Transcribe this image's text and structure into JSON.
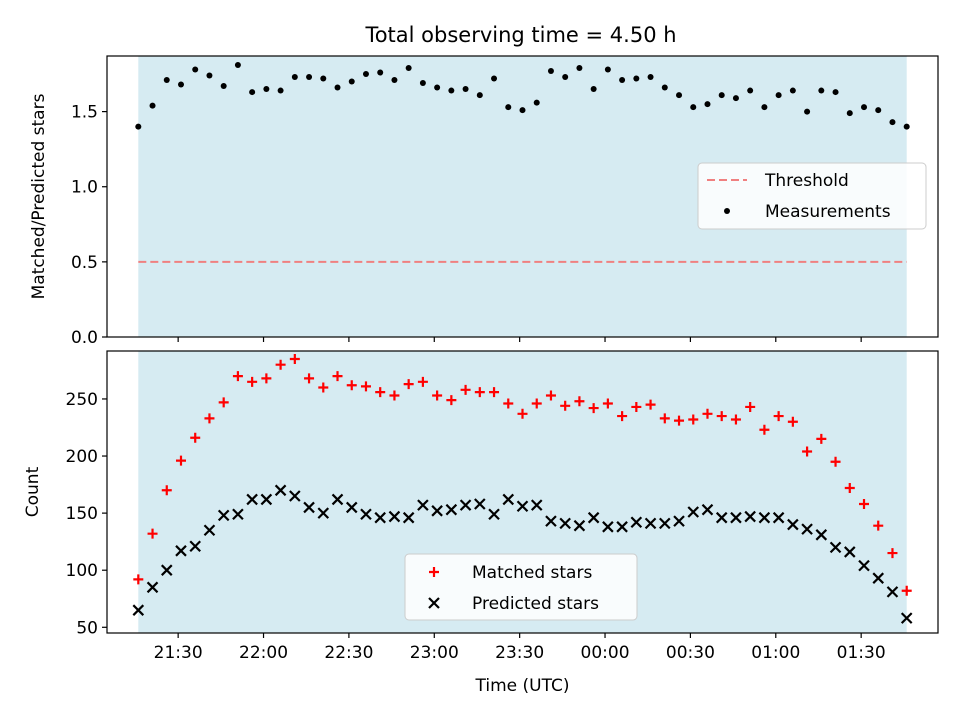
{
  "figure": {
    "title": "Total observing time = 4.50 h"
  },
  "chart_data": [
    {
      "type": "scatter",
      "panel": "top",
      "ylabel": "Matched/Predicted stars",
      "ylim": [
        0.0,
        1.87
      ],
      "yticks": [
        0.0,
        0.5,
        1.0,
        1.5
      ],
      "ytick_labels": [
        "0.0",
        "0.5",
        "1.0",
        "1.5"
      ],
      "xlim": [
        "21:05",
        "01:57"
      ],
      "shaded_span": [
        "21:16",
        "01:46"
      ],
      "shade_color": "#add8e6",
      "legend_position": "center-right",
      "threshold": {
        "name": "Threshold",
        "value": 0.5,
        "color": "#f08080",
        "style": "dashed"
      },
      "series": [
        {
          "name": "Measurements",
          "color": "#000000",
          "marker": "dot",
          "x": [
            "21:16",
            "21:21",
            "21:26",
            "21:31",
            "21:36",
            "21:41",
            "21:46",
            "21:51",
            "21:56",
            "22:01",
            "22:06",
            "22:11",
            "22:16",
            "22:21",
            "22:26",
            "22:31",
            "22:36",
            "22:41",
            "22:46",
            "22:51",
            "22:56",
            "23:01",
            "23:06",
            "23:11",
            "23:16",
            "23:21",
            "23:26",
            "23:31",
            "23:36",
            "23:41",
            "23:46",
            "23:51",
            "23:56",
            "00:01",
            "00:06",
            "00:11",
            "00:16",
            "00:21",
            "00:26",
            "00:31",
            "00:36",
            "00:41",
            "00:46",
            "00:51",
            "00:56",
            "01:01",
            "01:06",
            "01:11",
            "01:16",
            "01:21",
            "01:26",
            "01:31",
            "01:36",
            "01:41",
            "01:46"
          ],
          "y": [
            1.4,
            1.54,
            1.71,
            1.68,
            1.78,
            1.74,
            1.67,
            1.81,
            1.63,
            1.65,
            1.64,
            1.73,
            1.73,
            1.72,
            1.66,
            1.7,
            1.75,
            1.76,
            1.71,
            1.79,
            1.69,
            1.66,
            1.64,
            1.65,
            1.61,
            1.72,
            1.53,
            1.51,
            1.56,
            1.77,
            1.73,
            1.79,
            1.65,
            1.78,
            1.71,
            1.72,
            1.73,
            1.66,
            1.61,
            1.53,
            1.55,
            1.61,
            1.59,
            1.64,
            1.53,
            1.61,
            1.64,
            1.5,
            1.64,
            1.63,
            1.49,
            1.53,
            1.51,
            1.43,
            1.4
          ]
        }
      ]
    },
    {
      "type": "scatter",
      "panel": "bottom",
      "xlabel": "Time (UTC)",
      "ylabel": "Count",
      "ylim": [
        45,
        292
      ],
      "yticks": [
        50,
        100,
        150,
        200,
        250
      ],
      "ytick_labels": [
        "50",
        "100",
        "150",
        "200",
        "250"
      ],
      "xlim": [
        "21:05",
        "01:57"
      ],
      "xticks": [
        "21:30",
        "22:00",
        "22:30",
        "23:00",
        "23:30",
        "00:00",
        "00:30",
        "01:00",
        "01:30"
      ],
      "xtick_labels": [
        "21:30",
        "22:00",
        "22:30",
        "23:00",
        "23:30",
        "00:00",
        "00:30",
        "01:00",
        "01:30"
      ],
      "shaded_span": [
        "21:16",
        "01:46"
      ],
      "shade_color": "#add8e6",
      "legend_position": "lower-center",
      "series": [
        {
          "name": "Matched stars",
          "color": "#ff0000",
          "marker": "plus",
          "x": [
            "21:16",
            "21:21",
            "21:26",
            "21:31",
            "21:36",
            "21:41",
            "21:46",
            "21:51",
            "21:56",
            "22:01",
            "22:06",
            "22:11",
            "22:16",
            "22:21",
            "22:26",
            "22:31",
            "22:36",
            "22:41",
            "22:46",
            "22:51",
            "22:56",
            "23:01",
            "23:06",
            "23:11",
            "23:16",
            "23:21",
            "23:26",
            "23:31",
            "23:36",
            "23:41",
            "23:46",
            "23:51",
            "23:56",
            "00:01",
            "00:06",
            "00:11",
            "00:16",
            "00:21",
            "00:26",
            "00:31",
            "00:36",
            "00:41",
            "00:46",
            "00:51",
            "00:56",
            "01:01",
            "01:06",
            "01:11",
            "01:16",
            "01:21",
            "01:26",
            "01:31",
            "01:36",
            "01:41",
            "01:46"
          ],
          "y": [
            92,
            132,
            170,
            196,
            216,
            233,
            247,
            270,
            265,
            268,
            280,
            285,
            268,
            260,
            270,
            262,
            261,
            256,
            253,
            263,
            265,
            253,
            249,
            258,
            256,
            256,
            246,
            237,
            246,
            253,
            244,
            248,
            242,
            246,
            235,
            243,
            245,
            233,
            231,
            232,
            237,
            235,
            232,
            243,
            223,
            235,
            230,
            204,
            215,
            195,
            172,
            158,
            139,
            115,
            82
          ]
        },
        {
          "name": "Predicted stars",
          "color": "#000000",
          "marker": "x",
          "x": [
            "21:16",
            "21:21",
            "21:26",
            "21:31",
            "21:36",
            "21:41",
            "21:46",
            "21:51",
            "21:56",
            "22:01",
            "22:06",
            "22:11",
            "22:16",
            "22:21",
            "22:26",
            "22:31",
            "22:36",
            "22:41",
            "22:46",
            "22:51",
            "22:56",
            "23:01",
            "23:06",
            "23:11",
            "23:16",
            "23:21",
            "23:26",
            "23:31",
            "23:36",
            "23:41",
            "23:46",
            "23:51",
            "23:56",
            "00:01",
            "00:06",
            "00:11",
            "00:16",
            "00:21",
            "00:26",
            "00:31",
            "00:36",
            "00:41",
            "00:46",
            "00:51",
            "00:56",
            "01:01",
            "01:06",
            "01:11",
            "01:16",
            "01:21",
            "01:26",
            "01:31",
            "01:36",
            "01:41",
            "01:46"
          ],
          "y": [
            65,
            85,
            100,
            117,
            121,
            135,
            148,
            149,
            162,
            162,
            170,
            165,
            155,
            150,
            162,
            155,
            149,
            146,
            147,
            146,
            157,
            152,
            153,
            157,
            158,
            149,
            162,
            156,
            157,
            143,
            141,
            139,
            146,
            138,
            138,
            142,
            141,
            141,
            143,
            151,
            153,
            146,
            146,
            147,
            146,
            146,
            140,
            136,
            131,
            120,
            116,
            104,
            93,
            81,
            58
          ]
        }
      ]
    }
  ]
}
